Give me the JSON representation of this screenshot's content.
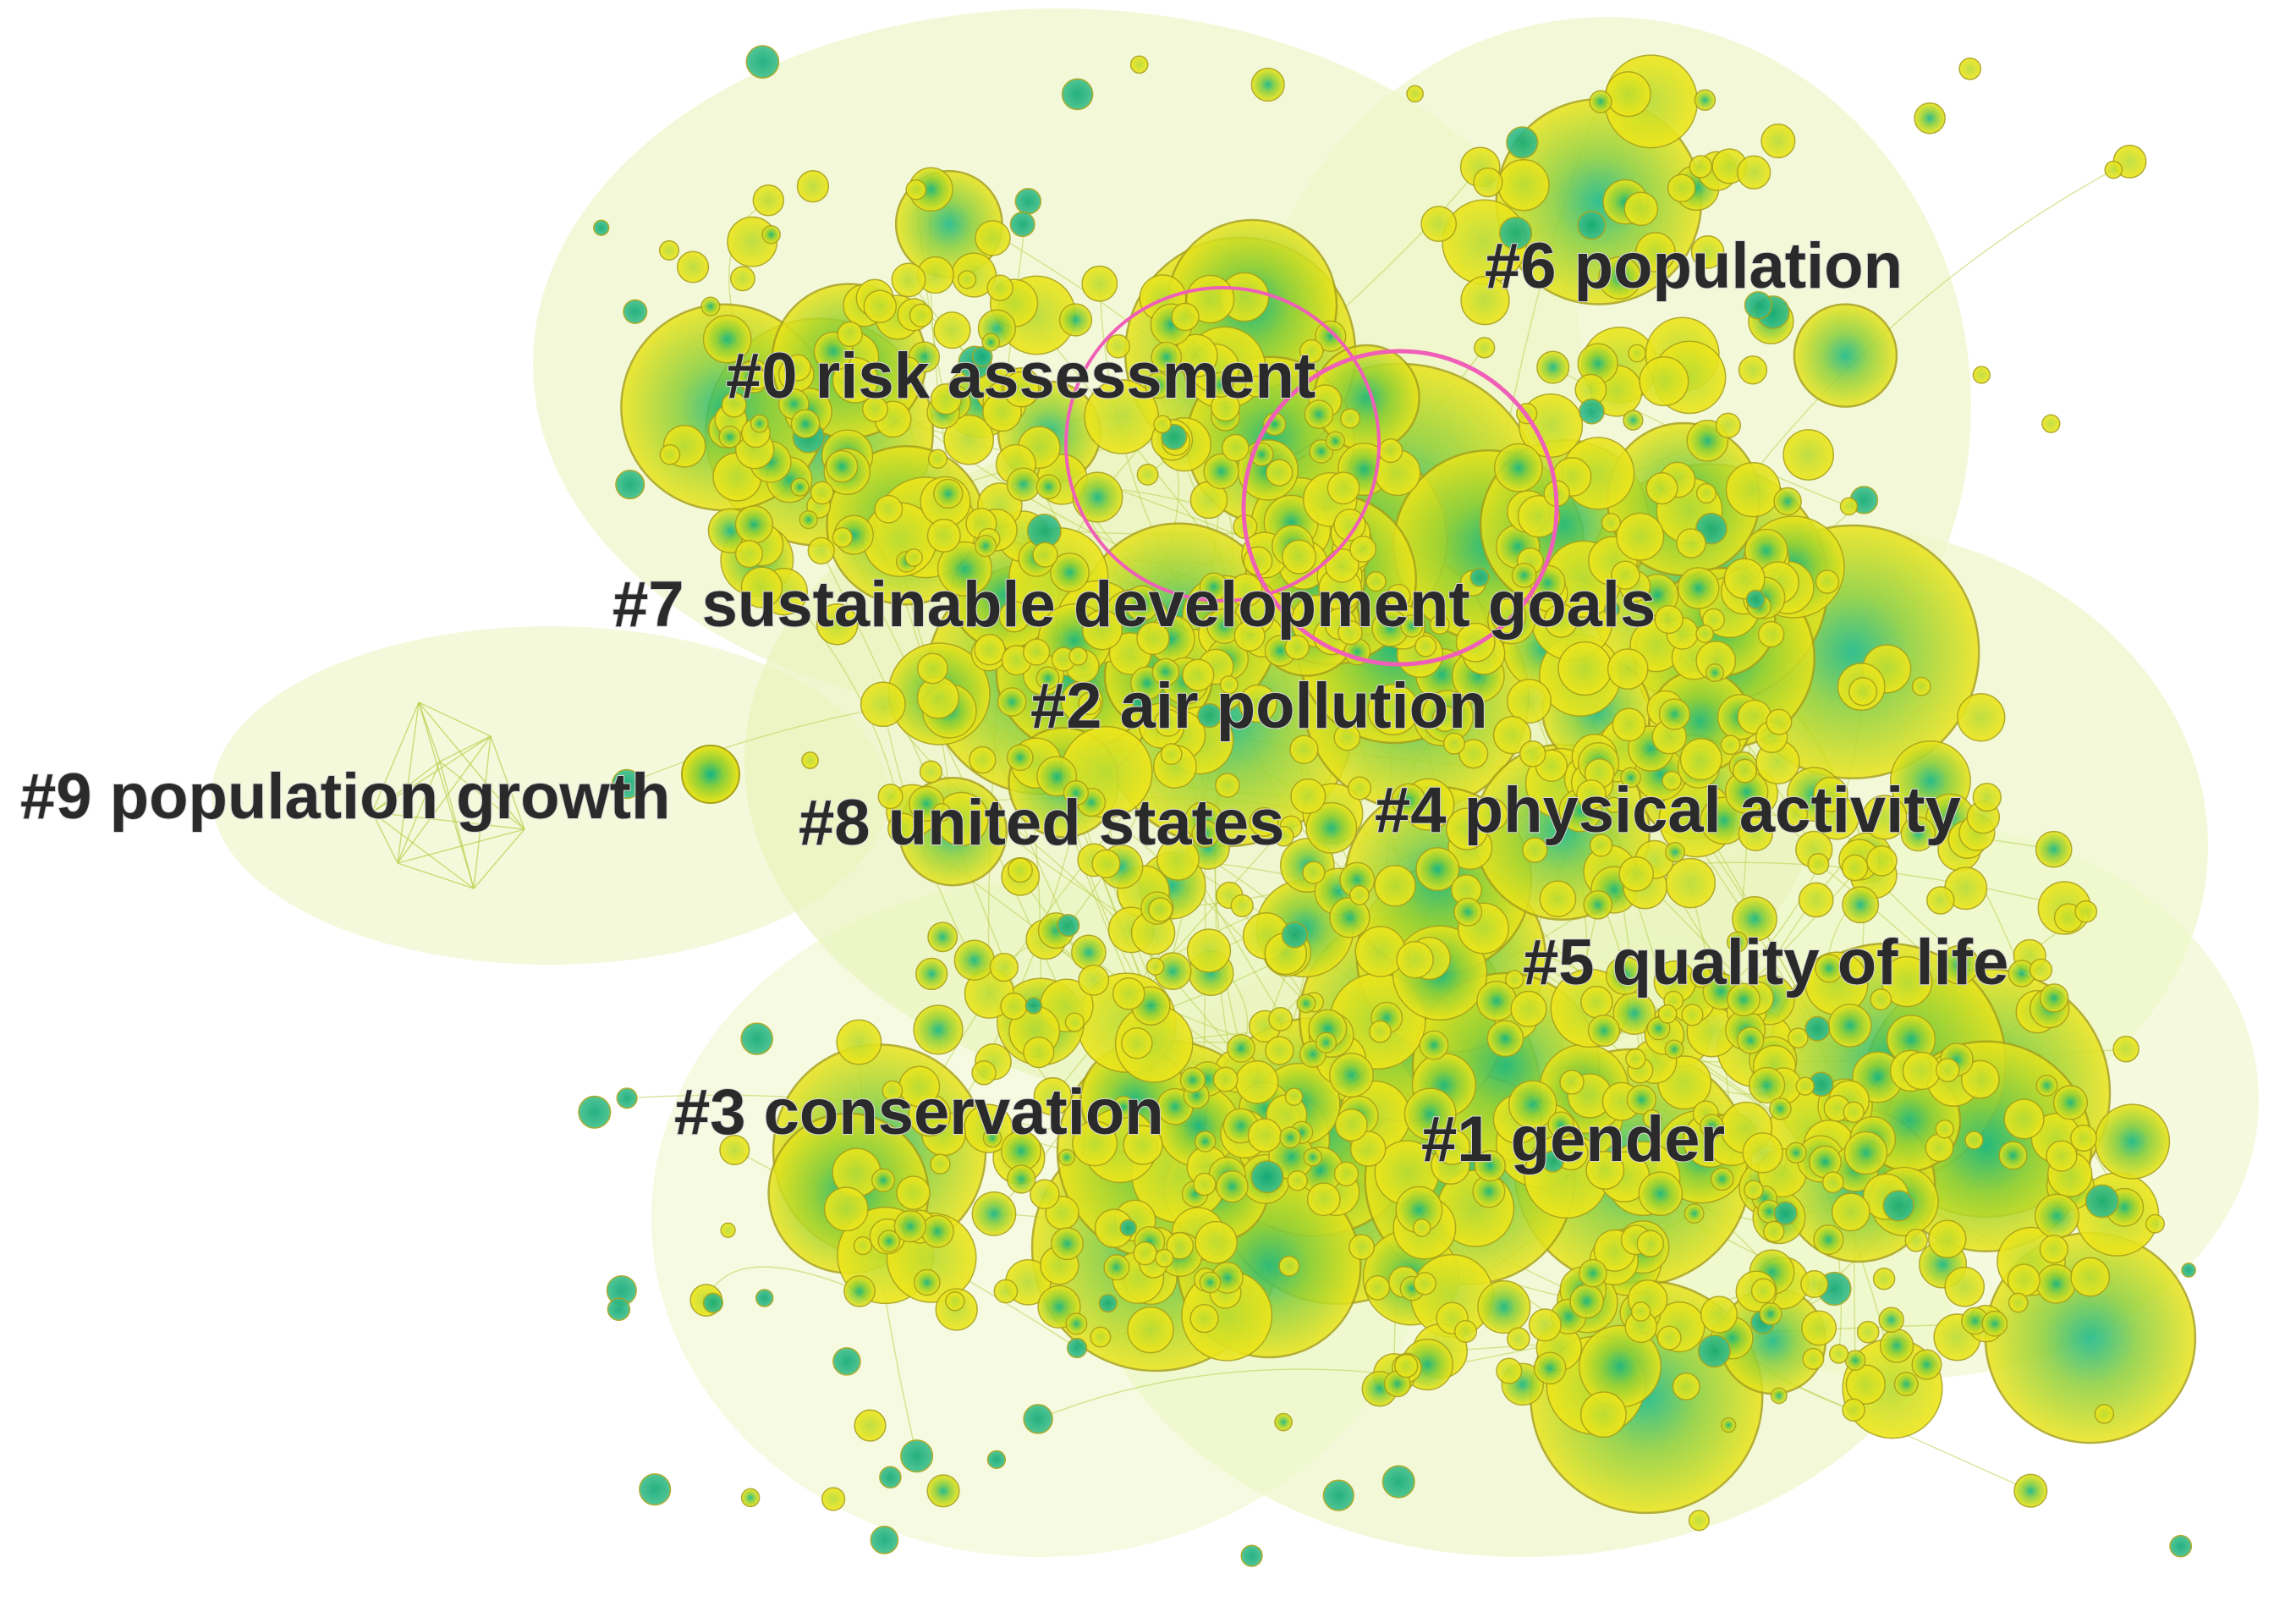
{
  "figure": {
    "type": "co-occurrence cluster network"
  },
  "colors": {
    "halo": "#eef6c8",
    "halo_light": "#f6fbe0",
    "edge": "#b9cf4a",
    "node_yellow": "#ece41a",
    "node_green": "#8ccf3a",
    "node_teal": "#18b07a",
    "node_stroke": "#a8a21a",
    "burst_ring": "#ef5fb8",
    "label_text": "#2a2a2a"
  },
  "clusters": [
    {
      "id": 0,
      "label": "#0 risk assessment"
    },
    {
      "id": 1,
      "label": "#1 gender"
    },
    {
      "id": 2,
      "label": "#2 air pollution"
    },
    {
      "id": 3,
      "label": "#3 conservation"
    },
    {
      "id": 4,
      "label": "#4 physical activity"
    },
    {
      "id": 5,
      "label": "#5 quality of life"
    },
    {
      "id": 6,
      "label": "#6 population"
    },
    {
      "id": 7,
      "label": "#7 sustainable development goals"
    },
    {
      "id": 8,
      "label": "#8 united states"
    },
    {
      "id": 9,
      "label": "#9 population growth"
    }
  ]
}
